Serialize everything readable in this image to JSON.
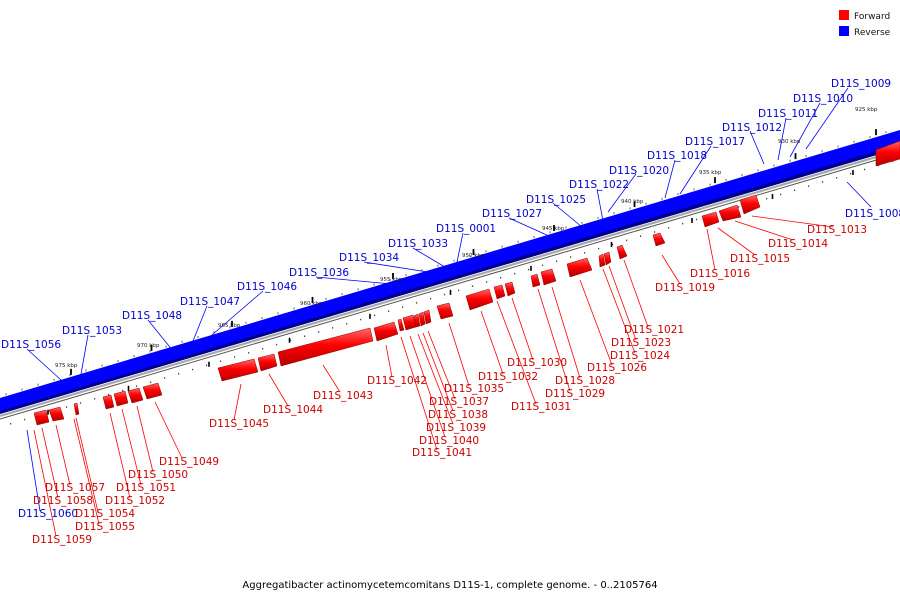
{
  "legend": [
    {
      "label": "Forward",
      "color": "#ff0000"
    },
    {
      "label": "Reverse",
      "color": "#0000ff"
    }
  ],
  "caption": "Aggregatibacter actinomycetemcomitans D11S-1, complete genome. - 0..2105764",
  "colors": {
    "forward": "#ff0000",
    "forward_dark": "#b00000",
    "reverse": "#0000ff",
    "reverse_dark": "#000080",
    "label_forward": "#cc0000",
    "label_reverse": "#0000cc"
  },
  "tick_labels": [
    "925 kbp",
    "930 kbp",
    "935 kbp",
    "940 kbp",
    "945 kbp",
    "950 kbp",
    "955 kbp",
    "960 kbp",
    "965 kbp",
    "970 kbp",
    "975 kbp"
  ],
  "reverse_genes": [
    "D11S_1009",
    "D11S_1010",
    "D11S_1011",
    "D11S_1012",
    "D11S_1017",
    "D11S_1018",
    "D11S_1020",
    "D11S_1022",
    "D11S_1025",
    "D11S_1027",
    "D11S_0001",
    "D11S_1033",
    "D11S_1034",
    "D11S_1036",
    "D11S_1046",
    "D11S_1047",
    "D11S_1048",
    "D11S_1053",
    "D11S_1056",
    "D11S_1008",
    "D11S_1060"
  ],
  "forward_genes": [
    "D11S_1013",
    "D11S_1014",
    "D11S_1015",
    "D11S_1016",
    "D11S_1019",
    "D11S_1021",
    "D11S_1023",
    "D11S_1024",
    "D11S_1026",
    "D11S_1028",
    "D11S_1029",
    "D11S_1030",
    "D11S_1031",
    "D11S_1032",
    "D11S_1035",
    "D11S_1037",
    "D11S_1038",
    "D11S_1039",
    "D11S_1040",
    "D11S_1041",
    "D11S_1042",
    "D11S_1043",
    "D11S_1044",
    "D11S_1045",
    "D11S_1049",
    "D11S_1050",
    "D11S_1051",
    "D11S_1052",
    "D11S_1054",
    "D11S_1055",
    "D11S_1057",
    "D11S_1058",
    "D11S_1059"
  ]
}
